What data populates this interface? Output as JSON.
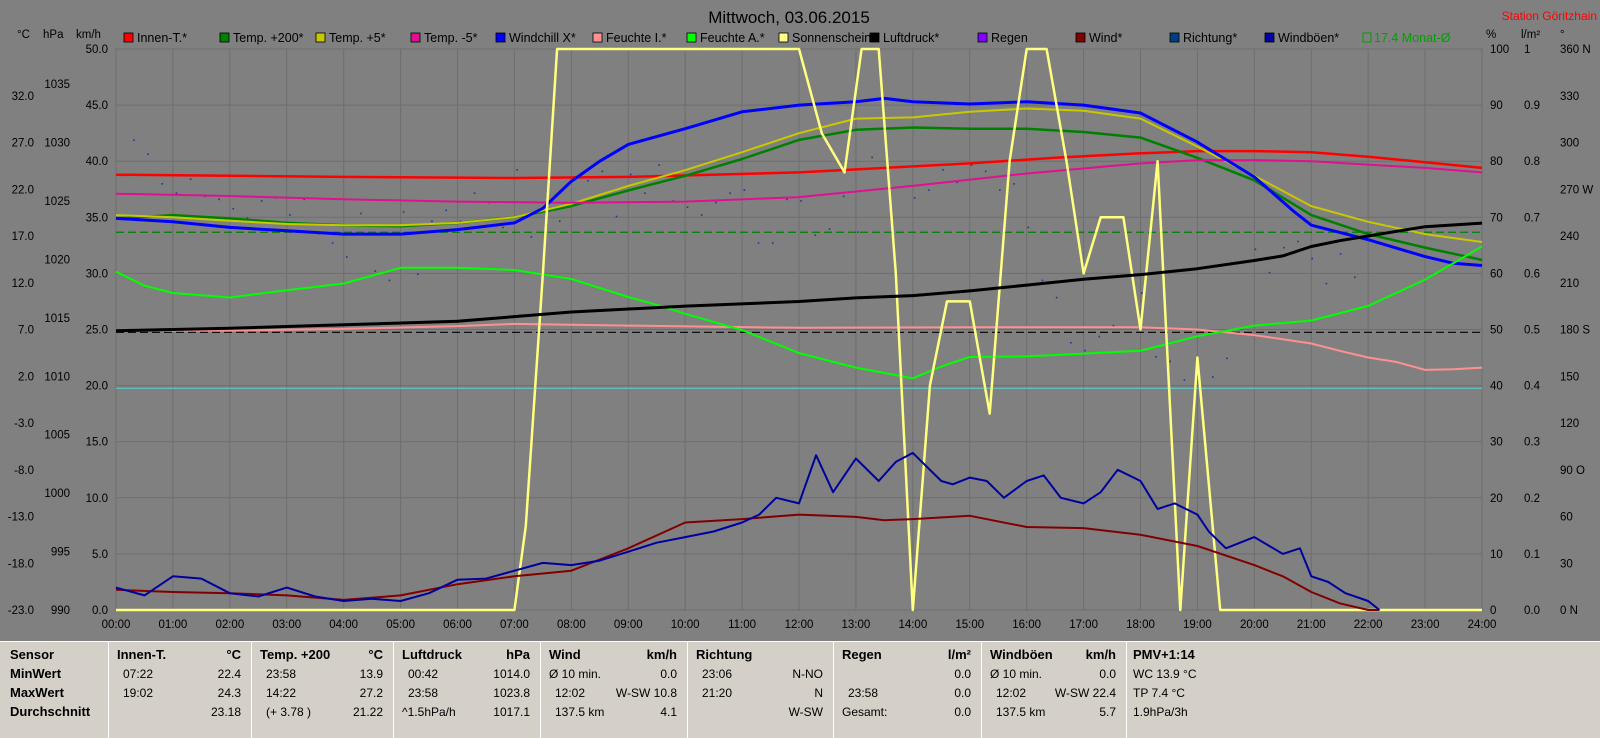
{
  "title": "Mittwoch, 03.06.2015",
  "station": "Station Göritzhain",
  "axis_left": {
    "celsius_unit": "°C",
    "hpa_unit": "hPa",
    "kmh_unit": "km/h",
    "celsius_ticks": [
      "32.0",
      "27.0",
      "22.0",
      "17.0",
      "12.0",
      "7.0",
      "2.0",
      "-3.0",
      "-8.0",
      "-13.0",
      "-18.0",
      "-23.0"
    ],
    "hpa_ticks": [
      "1035",
      "1030",
      "1025",
      "1020",
      "1015",
      "1010",
      "1005",
      "1000",
      "995",
      "990"
    ],
    "kmh_ticks": [
      "50.0",
      "45.0",
      "40.0",
      "35.0",
      "30.0",
      "25.0",
      "20.0",
      "15.0",
      "10.0",
      "5.0",
      "0.0"
    ]
  },
  "axis_right": {
    "pct_unit": "%",
    "rain_unit": "l/m²",
    "deg_unit": "°",
    "pct_ticks": [
      "100",
      "90",
      "80",
      "70",
      "60",
      "50",
      "40",
      "30",
      "20",
      "10",
      "0"
    ],
    "rain_ticks": [
      "1",
      "0.9",
      "0.8",
      "0.7",
      "0.6",
      "0.5",
      "0.4",
      "0.3",
      "0.2",
      "0.1",
      "0.0"
    ],
    "dir_ticks": [
      "360 N",
      "330",
      "300",
      "270 W",
      "240",
      "210",
      "180 S",
      "150",
      "120",
      "90 O",
      "60",
      "30",
      "0 N"
    ]
  },
  "x_ticks": [
    "00:00",
    "01:00",
    "02:00",
    "03:00",
    "04:00",
    "05:00",
    "06:00",
    "07:00",
    "08:00",
    "09:00",
    "10:00",
    "11:00",
    "12:00",
    "13:00",
    "14:00",
    "15:00",
    "16:00",
    "17:00",
    "18:00",
    "19:00",
    "20:00",
    "21:00",
    "22:00",
    "23:00",
    "24:00"
  ],
  "legend": [
    {
      "label": "Innen-T.*",
      "color": "#ff0000"
    },
    {
      "label": "Temp. +200*",
      "color": "#008000"
    },
    {
      "label": "Temp. +5*",
      "color": "#c8c800"
    },
    {
      "label": "Temp. -5*",
      "color": "#e01090"
    },
    {
      "label": "Windchill X*",
      "color": "#0000ff"
    },
    {
      "label": "Feuchte I.*",
      "color": "#ff9090"
    },
    {
      "label": "Feuchte A.*",
      "color": "#00ff00"
    },
    {
      "label": "Sonnenschein",
      "color": "#ffff80"
    },
    {
      "label": "Luftdruck*",
      "color": "#000000"
    },
    {
      "label": "Regen",
      "color": "#8000ff"
    },
    {
      "label": "Wind*",
      "color": "#800000"
    },
    {
      "label": "Richtung*",
      "color": "#004080"
    },
    {
      "label": "Windböen*",
      "color": "#0000a0"
    }
  ],
  "monthly_avg_label": "17.4 Monat-Ø",
  "chart_data": {
    "type": "line",
    "x_unit": "hour of day",
    "xlim": [
      0,
      24
    ],
    "axes": {
      "temperature_c": [
        -23,
        37
      ],
      "pressure_hpa": [
        990,
        1038
      ],
      "wind_kmh": [
        0,
        50
      ],
      "percent": [
        0,
        100
      ],
      "rain_lm2": [
        0,
        1
      ],
      "direction_deg": [
        0,
        360
      ]
    },
    "series": [
      {
        "name": "Innen-T.*",
        "axis": "kmh",
        "color": "#ff0000",
        "width": 2.5,
        "x": [
          0,
          4,
          7,
          9,
          12,
          15,
          16.5,
          18,
          19,
          20,
          21,
          22,
          23,
          24
        ],
        "y": [
          38.8,
          38.6,
          38.5,
          38.6,
          39.0,
          39.8,
          40.3,
          40.7,
          40.9,
          40.9,
          40.8,
          40.4,
          39.9,
          39.4
        ]
      },
      {
        "name": "Temp. +200*",
        "axis": "kmh",
        "color": "#008000",
        "width": 2.5,
        "x": [
          0,
          1,
          2,
          3,
          4,
          5,
          6,
          7,
          8,
          9,
          10,
          11,
          12,
          13,
          14,
          15,
          16,
          17,
          18,
          19,
          20,
          21,
          22,
          23,
          24
        ],
        "y": [
          34.9,
          35.2,
          34.9,
          34.5,
          34.3,
          34.2,
          34.5,
          35.0,
          36.0,
          37.4,
          38.7,
          40.2,
          41.9,
          42.8,
          43.0,
          42.9,
          42.9,
          42.6,
          42.1,
          40.3,
          38.3,
          35.2,
          33.5,
          32.3,
          31.2
        ]
      },
      {
        "name": "Temp. +5*",
        "axis": "kmh",
        "color": "#c8c800",
        "width": 2,
        "x": [
          0,
          1,
          2,
          3,
          4,
          5,
          6,
          7,
          8,
          9,
          10,
          11,
          12,
          13,
          14,
          15,
          16,
          17,
          18,
          19,
          20,
          21,
          22,
          23,
          24
        ],
        "y": [
          35.2,
          35.0,
          34.7,
          34.4,
          34.3,
          34.3,
          34.5,
          35.0,
          36.2,
          37.8,
          39.2,
          40.8,
          42.5,
          43.8,
          43.9,
          44.4,
          44.7,
          44.5,
          43.8,
          41.3,
          38.7,
          36.0,
          34.6,
          33.5,
          32.8
        ]
      },
      {
        "name": "Temp. -5*",
        "axis": "kmh",
        "color": "#e01090",
        "width": 2,
        "x": [
          0,
          2,
          4,
          6,
          8,
          10,
          12,
          14,
          16,
          18,
          19,
          20,
          21,
          22,
          23,
          24
        ],
        "y": [
          37.1,
          36.9,
          36.6,
          36.4,
          36.3,
          36.4,
          36.8,
          37.8,
          38.9,
          39.8,
          40.1,
          40.1,
          40.0,
          39.7,
          39.4,
          39.0
        ]
      },
      {
        "name": "Windchill X*",
        "axis": "kmh",
        "color": "#0000ff",
        "width": 3,
        "x": [
          0,
          1,
          2,
          3,
          4,
          5,
          6,
          7,
          7.5,
          8,
          8.5,
          9,
          10,
          11,
          12,
          13,
          13.5,
          14,
          15,
          16,
          17,
          18,
          19,
          20,
          20.7,
          21,
          22,
          23,
          23.5,
          24
        ],
        "y": [
          34.9,
          34.6,
          34.1,
          33.8,
          33.5,
          33.5,
          33.9,
          34.5,
          35.8,
          38.2,
          40.0,
          41.5,
          42.9,
          44.4,
          45.0,
          45.3,
          45.6,
          45.3,
          45.1,
          45.3,
          45.0,
          44.3,
          41.7,
          38.6,
          35.5,
          34.3,
          33.0,
          31.5,
          30.9,
          30.7
        ]
      },
      {
        "name": "Feuchte I.*",
        "axis": "pct",
        "color": "#ff9090",
        "width": 2,
        "x": [
          0,
          2,
          4,
          6,
          7,
          9,
          12,
          15,
          18,
          19,
          20,
          21,
          21.5,
          22,
          22.5,
          23,
          23.5,
          24
        ],
        "y": [
          49.8,
          49.8,
          50.1,
          50.6,
          51.0,
          50.7,
          50.3,
          50.4,
          50.4,
          50.0,
          49.0,
          47.5,
          46.2,
          45.0,
          44.2,
          42.8,
          42.9,
          43.2
        ]
      },
      {
        "name": "Feuchte A.*",
        "axis": "pct",
        "color": "#00ff00",
        "width": 2,
        "x": [
          0,
          0.5,
          1,
          2,
          3,
          4,
          5,
          6,
          7,
          8,
          9,
          9.5,
          10,
          11,
          12,
          13,
          14,
          14.5,
          15,
          16,
          17,
          18,
          19,
          20,
          21,
          22,
          23,
          24
        ],
        "y": [
          60.3,
          57.8,
          56.5,
          55.7,
          57.0,
          58.2,
          61.0,
          61.0,
          60.6,
          59.0,
          55.8,
          54.4,
          52.8,
          49.9,
          45.8,
          43.2,
          41.3,
          43.4,
          45.1,
          45.2,
          45.7,
          46.2,
          48.8,
          50.7,
          51.6,
          54.2,
          58.9,
          64.8
        ]
      },
      {
        "name": "Sonnenschein",
        "axis": "pct",
        "color": "#ffff80",
        "width": 2.5,
        "x": [
          0,
          7,
          7.2,
          7.5,
          7.75,
          12,
          12.4,
          12.8,
          13.1,
          13.4,
          13.7,
          14,
          14.3,
          14.6,
          15,
          15.35,
          15.7,
          16,
          16.35,
          16.7,
          17,
          17.3,
          17.7,
          18,
          18.3,
          18.7,
          19,
          19.4,
          24
        ],
        "y": [
          0,
          0,
          15,
          60,
          100,
          100,
          85,
          78,
          100,
          100,
          60,
          0,
          40,
          55,
          55,
          35,
          80,
          100,
          100,
          80,
          60,
          70,
          70,
          50,
          80,
          0,
          45,
          0,
          0
        ]
      },
      {
        "name": "Luftdruck*",
        "axis": "hpa",
        "color": "#000000",
        "width": 3,
        "x": [
          0,
          2,
          4,
          6,
          8,
          10,
          12,
          13,
          14,
          15,
          16,
          17,
          18,
          19,
          20,
          20.5,
          21,
          21.5,
          22,
          22.5,
          23,
          24
        ],
        "y": [
          1013.9,
          1014.1,
          1014.4,
          1014.7,
          1015.5,
          1016.0,
          1016.4,
          1016.7,
          1016.9,
          1017.3,
          1017.8,
          1018.3,
          1018.7,
          1019.2,
          1019.9,
          1020.3,
          1021.1,
          1021.6,
          1022.0,
          1022.4,
          1022.8,
          1023.1
        ]
      },
      {
        "name": "Wind*",
        "axis": "kmh",
        "color": "#800000",
        "width": 2,
        "x": [
          0,
          1,
          2,
          3,
          4,
          5,
          6,
          7,
          8,
          9,
          10,
          11,
          12,
          12.5,
          13,
          13.5,
          14,
          15,
          16,
          17,
          18,
          19,
          20,
          20.5,
          21,
          21.5,
          22,
          22.2
        ],
        "y": [
          1.8,
          1.6,
          1.5,
          1.3,
          0.9,
          1.3,
          2.3,
          3.0,
          3.5,
          5.5,
          7.8,
          8.1,
          8.5,
          8.4,
          8.3,
          8.0,
          8.1,
          8.4,
          7.4,
          7.3,
          6.7,
          5.7,
          4.0,
          3.0,
          1.6,
          0.6,
          0.0,
          0.0
        ]
      },
      {
        "name": "Windböen*",
        "axis": "kmh",
        "color": "#0000a0",
        "width": 2,
        "x": [
          0,
          0.5,
          1,
          1.5,
          2,
          2.5,
          3,
          3.5,
          4,
          4.5,
          5,
          5.5,
          6,
          6.5,
          7,
          7.5,
          8,
          8.5,
          9,
          9.5,
          10,
          10.5,
          11,
          11.3,
          11.6,
          12,
          12.3,
          12.6,
          13,
          13.4,
          13.7,
          14,
          14.5,
          14.7,
          15,
          15.3,
          15.6,
          16,
          16.3,
          16.6,
          17,
          17.3,
          17.6,
          18,
          18.3,
          18.6,
          19,
          19.2,
          19.5,
          20,
          20.5,
          20.8,
          21,
          21.3,
          21.6,
          22,
          22.2
        ],
        "y": [
          2.0,
          1.3,
          3.0,
          2.8,
          1.5,
          1.2,
          2.0,
          1.2,
          0.8,
          1.0,
          0.8,
          1.5,
          2.7,
          2.8,
          3.5,
          4.2,
          4.0,
          4.4,
          5.2,
          6.0,
          6.5,
          7.0,
          7.8,
          8.5,
          10.0,
          9.5,
          13.8,
          10.5,
          13.5,
          11.5,
          13.2,
          14.0,
          11.5,
          11.2,
          11.8,
          11.5,
          10.0,
          11.5,
          12.0,
          10.0,
          9.5,
          10.5,
          12.5,
          11.5,
          9.0,
          9.5,
          8.5,
          7.0,
          5.5,
          6.5,
          5.0,
          5.5,
          3.0,
          2.5,
          1.5,
          0.8,
          0.0
        ]
      }
    ],
    "reference_lines": [
      {
        "axis": "celsius",
        "value": 17.4,
        "color": "#008000",
        "style": "dashed"
      },
      {
        "axis": "pct",
        "value": 49.5,
        "color": "#000000",
        "style": "dashed"
      },
      {
        "axis": "pct",
        "value": 39.5,
        "color": "#60c0c0",
        "style": "solid"
      }
    ],
    "direction_points_deg": [
      302,
      293,
      274,
      268,
      277,
      266,
      264,
      258,
      252,
      263,
      265,
      254,
      264,
      242,
      236,
      227,
      255,
      218,
      212,
      256,
      216,
      250,
      257,
      250,
      268,
      262,
      246,
      283,
      240,
      260,
      250,
      262,
      276,
      282,
      253,
      280,
      268,
      286,
      263,
      259,
      254,
      262,
      268,
      270,
      236,
      236,
      264,
      263,
      241,
      245,
      266,
      243,
      291,
      295,
      272,
      265,
      270,
      283,
      275,
      286,
      282,
      270,
      274,
      246,
      212,
      201,
      172,
      167,
      176,
      183,
      237,
      204,
      163,
      160,
      148,
      150,
      150,
      162,
      181,
      232,
      217,
      233,
      237,
      226,
      210,
      229,
      214,
      240
    ]
  },
  "stats": {
    "row_labels": {
      "sensor": "Sensor",
      "min": "MinWert",
      "max": "MaxWert",
      "avg": "Durchschnitt"
    },
    "innen": {
      "title": "Innen-T.",
      "unit": "°C",
      "min_time": "07:22",
      "min_val": "22.4",
      "max_time": "19:02",
      "max_val": "24.3",
      "avg_val": "23.18"
    },
    "temp200": {
      "title": "Temp. +200",
      "unit": "°C",
      "min_time": "23:58",
      "min_val": "13.9",
      "max_time": "14:22",
      "max_val": "27.2",
      "avg_note": "(+ 3.78 )",
      "avg_val": "21.22"
    },
    "druck": {
      "title": "Luftdruck",
      "unit": "hPa",
      "min_time": "00:42",
      "min_val": "1014.0",
      "max_time": "23:58",
      "max_val": "1023.8",
      "trend": "^1.5hPa/h",
      "avg_val": "1017.1"
    },
    "wind": {
      "title": "Wind",
      "unit": "km/h",
      "r1_a": "Ø 10 min.",
      "r1_b": "0.0",
      "r2_a": "12:02",
      "r2_b": "W-SW 10.8",
      "r3_a": "137.5 km",
      "r3_b": "4.1"
    },
    "richtung": {
      "title": "Richtung",
      "r1_a": "23:06",
      "r1_b": "N-NO",
      "r2_a": "21:20",
      "r2_b": "N",
      "r3_b": "W-SW"
    },
    "regen": {
      "title": "Regen",
      "unit": "l/m²",
      "r2_a": "23:58",
      "r2_b": "0.0",
      "r3_a": "Gesamt:",
      "r3_b": "0.0",
      "r1_b": "0.0"
    },
    "boeen": {
      "title": "Windböen",
      "unit": "km/h",
      "r1_a": "Ø 10 min.",
      "r1_b": "0.0",
      "r2_a": "12:02",
      "r2_b": "W-SW 22.4",
      "r3_a": "137.5 km",
      "r3_b": "5.7"
    },
    "pmv": {
      "title": "PMV+1:14",
      "r1": "WC 13.9 °C",
      "r2": "TP 7.4 °C",
      "r3": "1.9hPa/3h"
    }
  }
}
